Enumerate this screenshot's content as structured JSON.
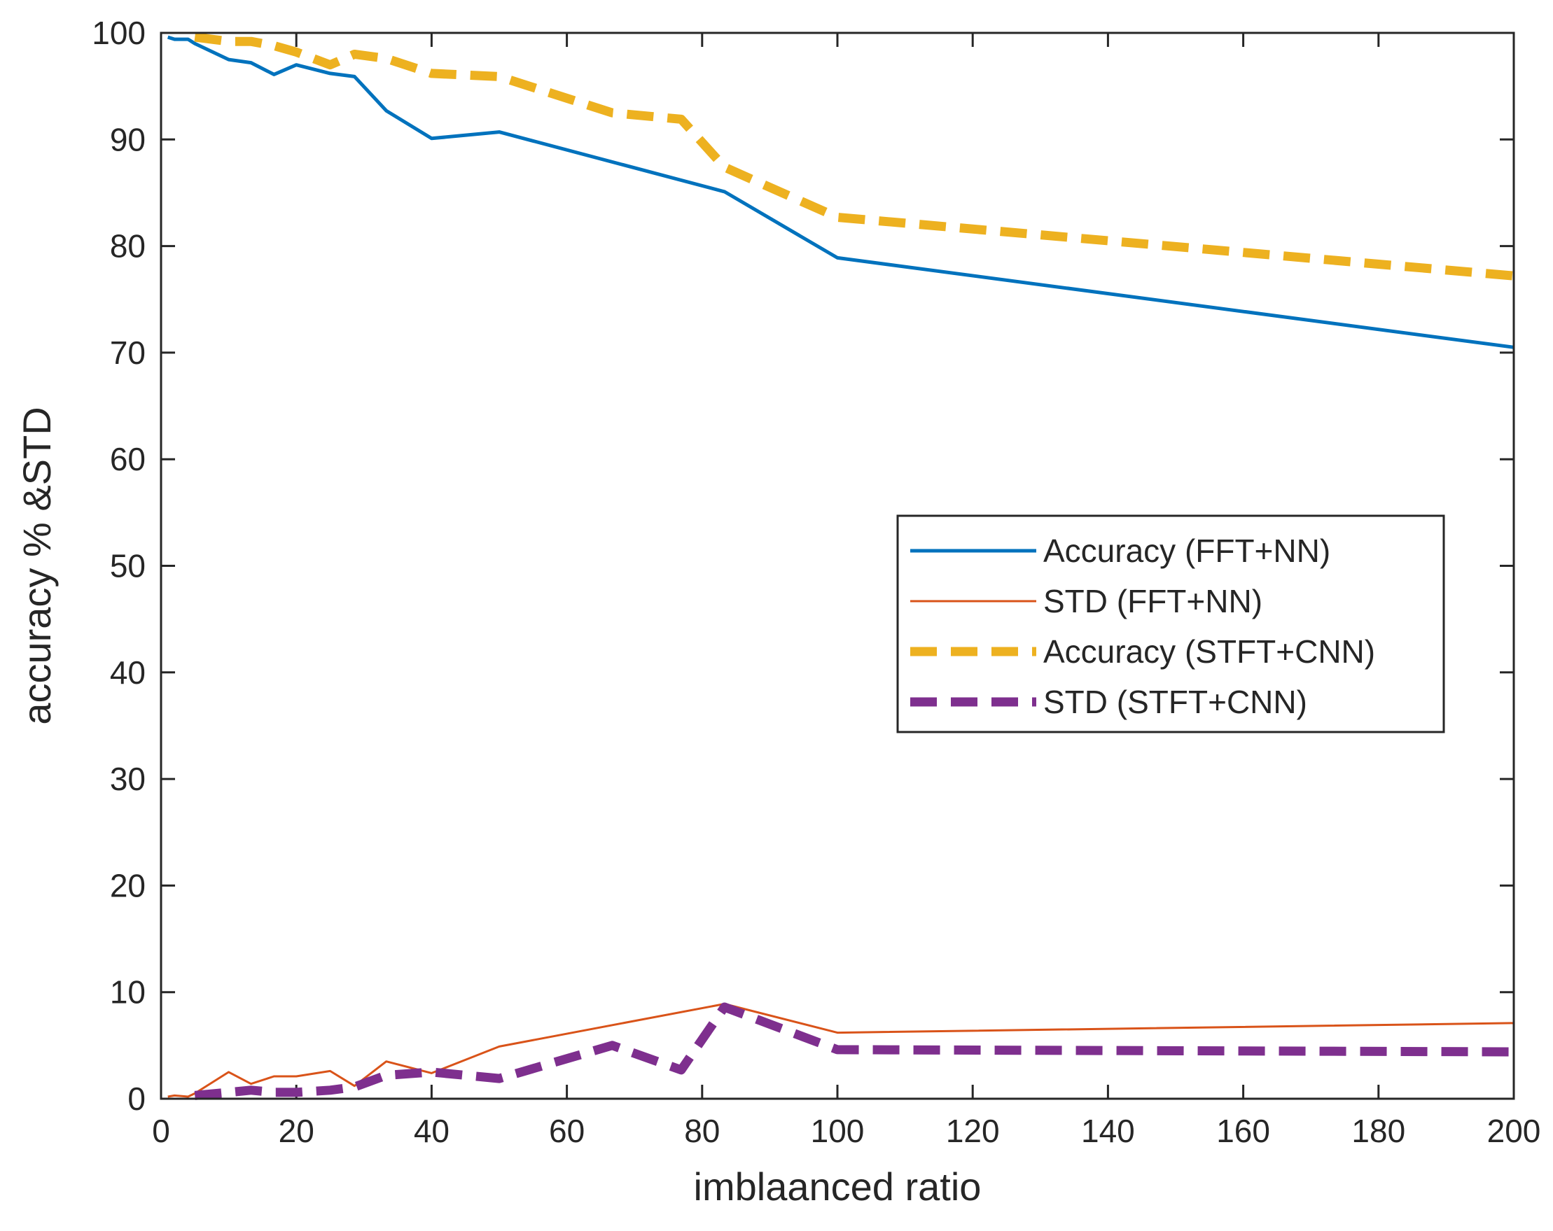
{
  "chart_data": {
    "type": "line",
    "title": "",
    "xlabel": "imblaanced ratio",
    "ylabel": "accuracy % &STD",
    "xlim": [
      0,
      200
    ],
    "ylim": [
      0,
      100
    ],
    "xticks": [
      0,
      20,
      40,
      60,
      80,
      100,
      120,
      140,
      160,
      180,
      200
    ],
    "yticks": [
      0,
      10,
      20,
      30,
      40,
      50,
      60,
      70,
      80,
      90,
      100
    ],
    "grid": false,
    "legend_position": "center-right",
    "series": [
      {
        "name": "Accuracy (FFT+NN)",
        "color": "#0072BD",
        "style": "solid",
        "x": [
          1,
          2,
          4,
          5,
          10,
          13.3,
          16.7,
          20,
          25,
          28.6,
          33.3,
          40,
          50,
          83.3,
          100,
          200
        ],
        "y": [
          99.6,
          99.4,
          99.4,
          99,
          97.5,
          97.2,
          96.1,
          97,
          96.2,
          95.9,
          92.7,
          90.1,
          90.7,
          85.1,
          78.9,
          70.5
        ]
      },
      {
        "name": "STD (FFT+NN)",
        "color": "#D95319",
        "style": "solid-thin",
        "x": [
          1,
          2,
          4,
          5,
          10,
          13.3,
          16.7,
          20,
          25,
          28.6,
          33.3,
          40,
          50,
          83.3,
          100,
          200
        ],
        "y": [
          0.2,
          0.3,
          0.2,
          0.5,
          2.5,
          1.4,
          2.1,
          2.1,
          2.6,
          1.2,
          3.5,
          2.4,
          4.9,
          8.9,
          6.2,
          7.1
        ]
      },
      {
        "name": "Accuracy (STFT+CNN)",
        "color": "#EDB120",
        "style": "dashed",
        "x": [
          5,
          10,
          13.3,
          16.7,
          20,
          25,
          28.6,
          33.3,
          40,
          50,
          66.7,
          76.9,
          83.3,
          100,
          200
        ],
        "y": [
          99.6,
          99.2,
          99.2,
          98.8,
          98.2,
          97,
          98,
          97.6,
          96.2,
          95.9,
          92.5,
          91.9,
          87.4,
          82.7,
          77.2
        ]
      },
      {
        "name": "STD (STFT+CNN)",
        "color": "#7E2F8E",
        "style": "dashed",
        "x": [
          5,
          10,
          13.3,
          16.7,
          20,
          25,
          28.6,
          33.3,
          40,
          50,
          66.7,
          76.9,
          83.3,
          100,
          200
        ],
        "y": [
          0.3,
          0.6,
          0.8,
          0.6,
          0.6,
          0.8,
          1.1,
          2.2,
          2.5,
          1.9,
          5,
          2.7,
          8.6,
          4.6,
          4.4
        ]
      }
    ]
  }
}
